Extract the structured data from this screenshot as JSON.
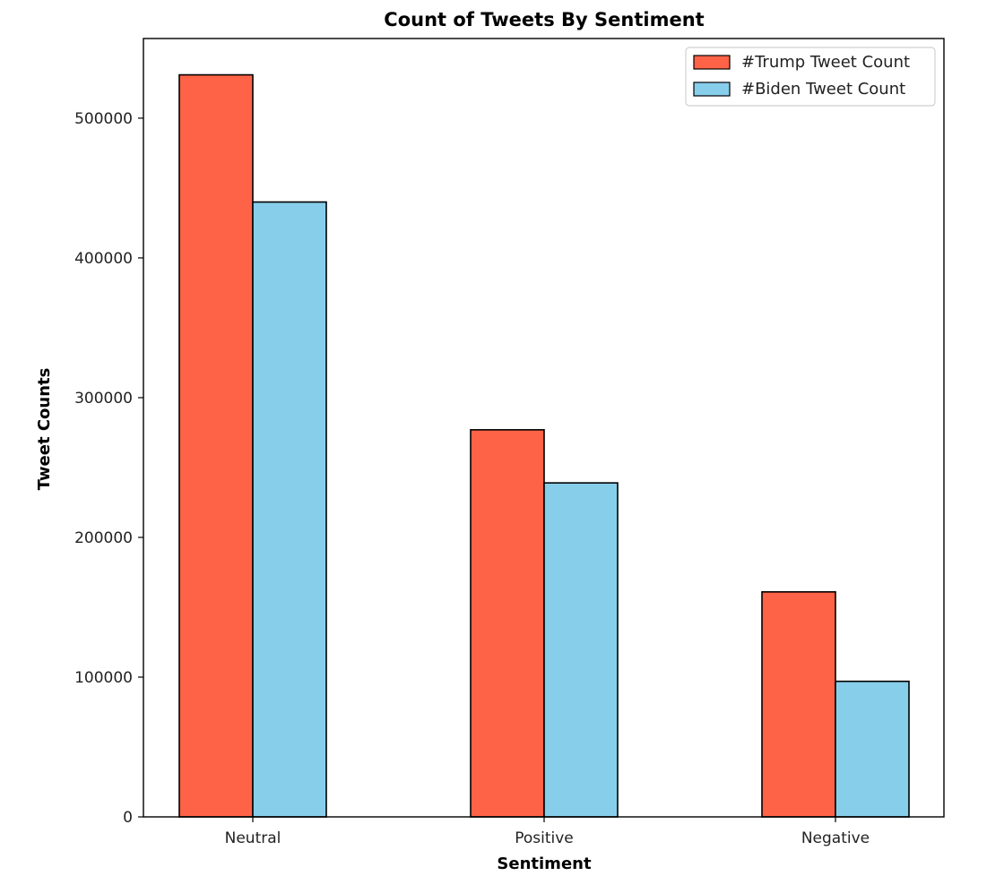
{
  "chart_data": {
    "type": "bar",
    "title": "Count of Tweets By Sentiment",
    "xlabel": "Sentiment",
    "ylabel": "Tweet Counts",
    "categories": [
      "Neutral",
      "Positive",
      "Negative"
    ],
    "series": [
      {
        "name": "#Trump Tweet Count",
        "values": [
          531000,
          277000,
          161000
        ],
        "color": "#FF6347"
      },
      {
        "name": "#Biden Tweet Count",
        "values": [
          440000,
          239000,
          97000
        ],
        "color": "#87CEEB"
      }
    ],
    "ylim": [
      0,
      557000
    ],
    "yticks": [
      0,
      100000,
      200000,
      300000,
      400000,
      500000
    ],
    "ytick_labels": [
      "0",
      "100000",
      "200000",
      "300000",
      "400000",
      "500000"
    ],
    "grid": false,
    "legend_position": "top-right",
    "edge_color": "#000000"
  }
}
